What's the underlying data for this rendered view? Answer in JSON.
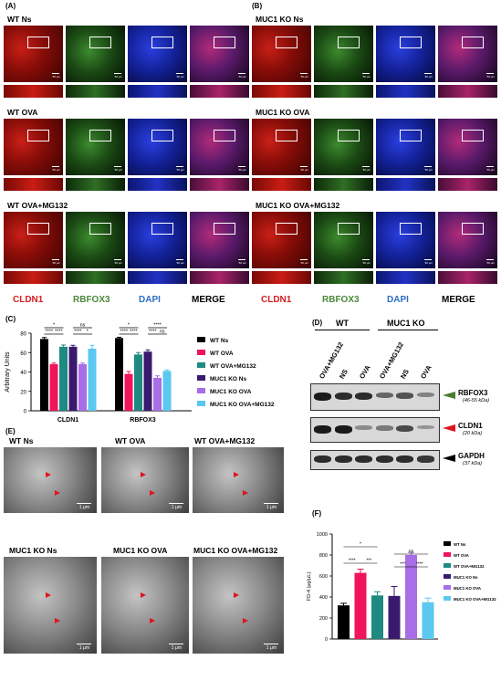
{
  "panels": {
    "A": "(A)",
    "B": "(B)",
    "C": "(C)",
    "D": "(D)",
    "E": "(E)",
    "F": "(F)"
  },
  "if_groups_left": [
    "WT Ns",
    "WT OVA",
    "WT OVA+MG132"
  ],
  "if_groups_right": [
    "MUC1 KO Ns",
    "MUC1 KO OVA",
    "MUC1 KO OVA+MG132"
  ],
  "channels": [
    "CLDN1",
    "RBFOX3",
    "DAPI",
    "MERGE"
  ],
  "channel_colors": {
    "CLDN1": "#d81f1f",
    "RBFOX3": "#4a8a3a",
    "DAPI": "#2c6fc4",
    "MERGE": "#000000"
  },
  "scalebar_text": "50 μm",
  "em_groups": [
    "WT Ns",
    "WT OVA",
    "WT OVA+MG132",
    "MUC1 KO Ns",
    "MUC1 KO OVA",
    "MUC1 KO OVA+MG132"
  ],
  "em_scale": "1 μm",
  "legend_C": [
    {
      "name": "WT Ns",
      "color": "#000000"
    },
    {
      "name": "WT OVA",
      "color": "#f0145a"
    },
    {
      "name": "WT OVA+MG132",
      "color": "#1e8a82"
    },
    {
      "name": "MUC1 KO Ns",
      "color": "#3a1a6e"
    },
    {
      "name": "MUC1 KO OVA",
      "color": "#a86ee6"
    },
    {
      "name": "MUC1 KO OVA+MG132",
      "color": "#5ac8f0"
    }
  ],
  "chart_data": [
    {
      "type": "bar",
      "panel": "C",
      "ylabel": "Arbitrary Units",
      "ylim": [
        0,
        80
      ],
      "yticks": [
        0,
        20,
        40,
        60,
        80
      ],
      "categories": [
        "CLDN1",
        "RBFOX3"
      ],
      "series": [
        {
          "name": "WT Ns",
          "values": [
            74,
            75
          ],
          "err": [
            1.5,
            0.8
          ]
        },
        {
          "name": "WT OVA",
          "values": [
            48,
            38
          ],
          "err": [
            1.2,
            2.5
          ]
        },
        {
          "name": "WT OVA+MG132",
          "values": [
            66,
            58
          ],
          "err": [
            1.8,
            2.0
          ]
        },
        {
          "name": "MUC1 KO Ns",
          "values": [
            66,
            61
          ],
          "err": [
            1.5,
            1.8
          ]
        },
        {
          "name": "MUC1 KO OVA",
          "values": [
            48,
            34
          ],
          "err": [
            1.2,
            2.0
          ]
        },
        {
          "name": "MUC1 KO OVA+MG132",
          "values": [
            64,
            41
          ],
          "err": [
            3.5,
            1.2
          ]
        }
      ],
      "significance": [
        "*",
        "****",
        "****",
        "ns",
        "****",
        "*",
        "*",
        "****",
        "****",
        "****",
        "****",
        "ns"
      ]
    },
    {
      "type": "bar",
      "panel": "F",
      "ylabel": "FD-4 (μg/μL)",
      "ylim": [
        0,
        1000
      ],
      "yticks": [
        0,
        200,
        400,
        600,
        800,
        1000
      ],
      "categories": [
        "WT Ns",
        "WT OVA",
        "WT OVA+MG132",
        "MUC1 KO Ns",
        "MUC1 KO OVA",
        "MUC1 KO OVA+MG132"
      ],
      "values": [
        320,
        630,
        415,
        410,
        800,
        350
      ],
      "err": [
        20,
        35,
        35,
        90,
        25,
        40
      ],
      "colors": [
        "#000000",
        "#f0145a",
        "#1e8a82",
        "#3a1a6e",
        "#a86ee6",
        "#5ac8f0"
      ],
      "significance": [
        "*",
        "****",
        "***",
        "ns",
        "***",
        "****"
      ]
    }
  ],
  "blot": {
    "groups": [
      "WT",
      "MUC1 KO"
    ],
    "lanes": [
      "OVA+MG132",
      "NS",
      "OVA",
      "OVA+MG132",
      "NS",
      "OVA"
    ],
    "bands": [
      {
        "name": "RBFOX3",
        "kda": "(46-55 kDa)",
        "arrow": "#4a7a2e"
      },
      {
        "name": "CLDN1",
        "kda": "(20 kDa)",
        "arrow": "#e0141a"
      },
      {
        "name": "GAPDH",
        "kda": "(37 kDa)",
        "arrow": "#000000"
      }
    ]
  }
}
